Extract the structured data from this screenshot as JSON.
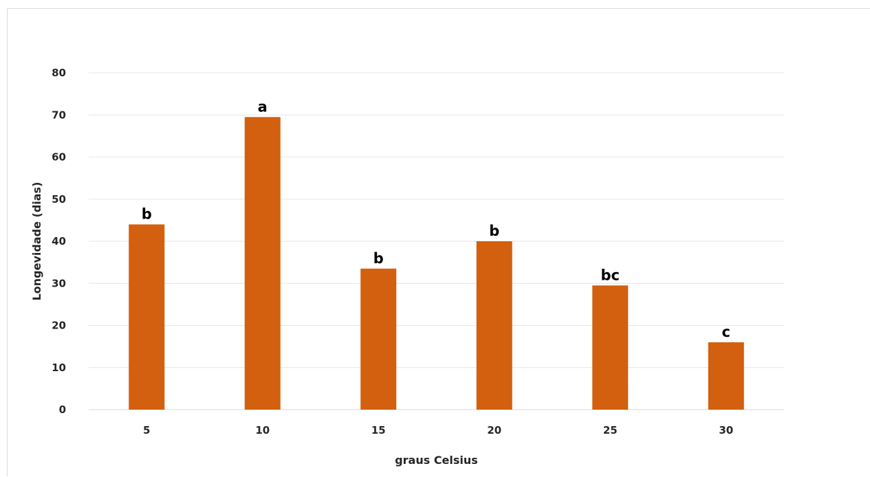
{
  "chart_data": {
    "type": "bar",
    "title": "",
    "xlabel": "graus Celsius",
    "ylabel": "Longevidade (dias)",
    "categories": [
      "5",
      "10",
      "15",
      "20",
      "25",
      "30"
    ],
    "values": [
      44,
      69.5,
      33.5,
      40,
      29.5,
      16
    ],
    "data_labels": [
      "b",
      "a",
      "b",
      "b",
      "bc",
      "c"
    ],
    "ylim": [
      0,
      80
    ],
    "yticks": [
      0,
      10,
      20,
      30,
      40,
      50,
      60,
      70,
      80
    ],
    "grid": true,
    "legend": "none",
    "bar_color": "#D2600F",
    "grid_color": "#E6E6E6"
  }
}
